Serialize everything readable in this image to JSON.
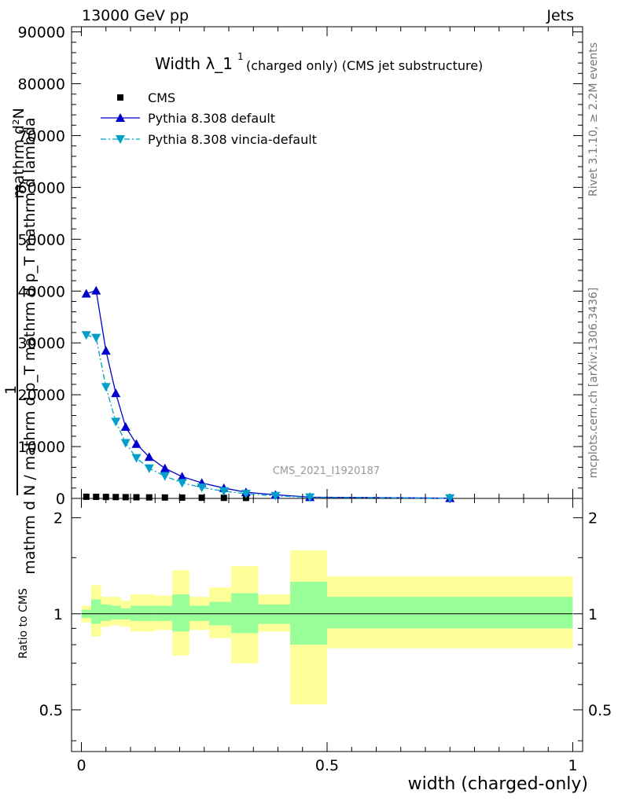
{
  "header": {
    "left": "13000 GeV pp",
    "right": "Jets"
  },
  "side_labels": {
    "top": "Rivet 3.1.10, ≥ 2.2M events",
    "bottom": "mcplots.cern.ch [arXiv:1306.3436]"
  },
  "watermark": "CMS_2021_I1920187",
  "chart_data": {
    "type": "line",
    "title": "Width λ_1",
    "title_superscript": "1",
    "subtitle": "(charged only) (CMS jet substructure)",
    "ylabel_numerator": "mathrm d²N",
    "ylabel_one": "1",
    "ylabel_denominator": "mathrm d N / mathrm d p_T mathrm d p_T mathrm d lambda",
    "xlabel": "width (charged-only)",
    "ratio_ylabel": "Ratio to CMS",
    "xlim": [
      -0.02,
      1.02
    ],
    "ylim": [
      0,
      91000
    ],
    "ratio_ylim": [
      0.37,
      2.3
    ],
    "ratio_log_scale": true,
    "x_ticks": [
      0,
      0.5,
      1
    ],
    "x_tick_labels": [
      "0",
      "0.5",
      "1"
    ],
    "y_ticks": [
      0,
      10000,
      20000,
      30000,
      40000,
      50000,
      60000,
      70000,
      80000,
      90000
    ],
    "y_tick_labels": [
      "0",
      "10000",
      "20000",
      "30000",
      "40000",
      "50000",
      "60000",
      "70000",
      "80000",
      "90000"
    ],
    "ratio_ticks": [
      0.5,
      1,
      2
    ],
    "ratio_tick_labels": [
      "0.5",
      "1",
      "2"
    ],
    "legend_position": "top-left",
    "series": [
      {
        "name": "CMS",
        "marker": "square",
        "color": "#000000",
        "x": [
          0.01,
          0.03,
          0.05,
          0.07,
          0.09,
          0.112,
          0.138,
          0.17,
          0.205,
          0.245,
          0.29,
          0.335
        ],
        "y": [
          320,
          300,
          280,
          260,
          240,
          220,
          200,
          180,
          150,
          130,
          110,
          90
        ]
      },
      {
        "name": "Pythia 8.308 default",
        "marker": "triangle-up",
        "line": "solid",
        "color": "#0000cc",
        "x": [
          0.01,
          0.03,
          0.05,
          0.07,
          0.09,
          0.112,
          0.138,
          0.17,
          0.205,
          0.245,
          0.29,
          0.335,
          0.395,
          0.465,
          0.75
        ],
        "y": [
          39500,
          40100,
          28500,
          20300,
          13800,
          10500,
          8000,
          5800,
          4200,
          3000,
          2000,
          1200,
          700,
          250,
          50
        ]
      },
      {
        "name": "Pythia 8.308 vincia-default",
        "marker": "triangle-down",
        "line": "dash-dot",
        "color": "#00a0c8",
        "x": [
          0.01,
          0.03,
          0.05,
          0.07,
          0.09,
          0.112,
          0.138,
          0.17,
          0.205,
          0.245,
          0.29,
          0.335,
          0.395,
          0.465,
          0.75
        ],
        "y": [
          31500,
          31000,
          21500,
          14800,
          10700,
          7800,
          5800,
          4300,
          3000,
          2100,
          1400,
          900,
          500,
          200,
          40
        ]
      }
    ],
    "ratio_bands": {
      "reference": 1,
      "bins": [
        {
          "x0": 0.0,
          "x1": 0.02,
          "stat": [
            0.97,
            1.03
          ],
          "total": [
            0.94,
            1.06
          ]
        },
        {
          "x0": 0.02,
          "x1": 0.04,
          "stat": [
            0.93,
            1.11
          ],
          "total": [
            0.85,
            1.23
          ]
        },
        {
          "x0": 0.04,
          "x1": 0.06,
          "stat": [
            0.95,
            1.07
          ],
          "total": [
            0.91,
            1.13
          ]
        },
        {
          "x0": 0.06,
          "x1": 0.08,
          "stat": [
            0.96,
            1.06
          ],
          "total": [
            0.92,
            1.13
          ]
        },
        {
          "x0": 0.08,
          "x1": 0.1,
          "stat": [
            0.96,
            1.04
          ],
          "total": [
            0.91,
            1.1
          ]
        },
        {
          "x0": 0.1,
          "x1": 0.125,
          "stat": [
            0.95,
            1.06
          ],
          "total": [
            0.88,
            1.15
          ]
        },
        {
          "x0": 0.125,
          "x1": 0.15,
          "stat": [
            0.95,
            1.06
          ],
          "total": [
            0.88,
            1.15
          ]
        },
        {
          "x0": 0.15,
          "x1": 0.185,
          "stat": [
            0.95,
            1.06
          ],
          "total": [
            0.89,
            1.14
          ]
        },
        {
          "x0": 0.185,
          "x1": 0.22,
          "stat": [
            0.88,
            1.15
          ],
          "total": [
            0.74,
            1.37
          ]
        },
        {
          "x0": 0.22,
          "x1": 0.26,
          "stat": [
            0.95,
            1.06
          ],
          "total": [
            0.89,
            1.13
          ]
        },
        {
          "x0": 0.26,
          "x1": 0.305,
          "stat": [
            0.92,
            1.09
          ],
          "total": [
            0.84,
            1.21
          ]
        },
        {
          "x0": 0.305,
          "x1": 0.36,
          "stat": [
            0.87,
            1.16
          ],
          "total": [
            0.7,
            1.41
          ]
        },
        {
          "x0": 0.36,
          "x1": 0.425,
          "stat": [
            0.93,
            1.07
          ],
          "total": [
            0.88,
            1.15
          ]
        },
        {
          "x0": 0.425,
          "x1": 0.5,
          "stat": [
            0.8,
            1.26
          ],
          "total": [
            0.52,
            1.58
          ]
        },
        {
          "x0": 0.5,
          "x1": 1.0,
          "stat": [
            0.9,
            1.13
          ],
          "total": [
            0.78,
            1.31
          ]
        }
      ]
    }
  }
}
